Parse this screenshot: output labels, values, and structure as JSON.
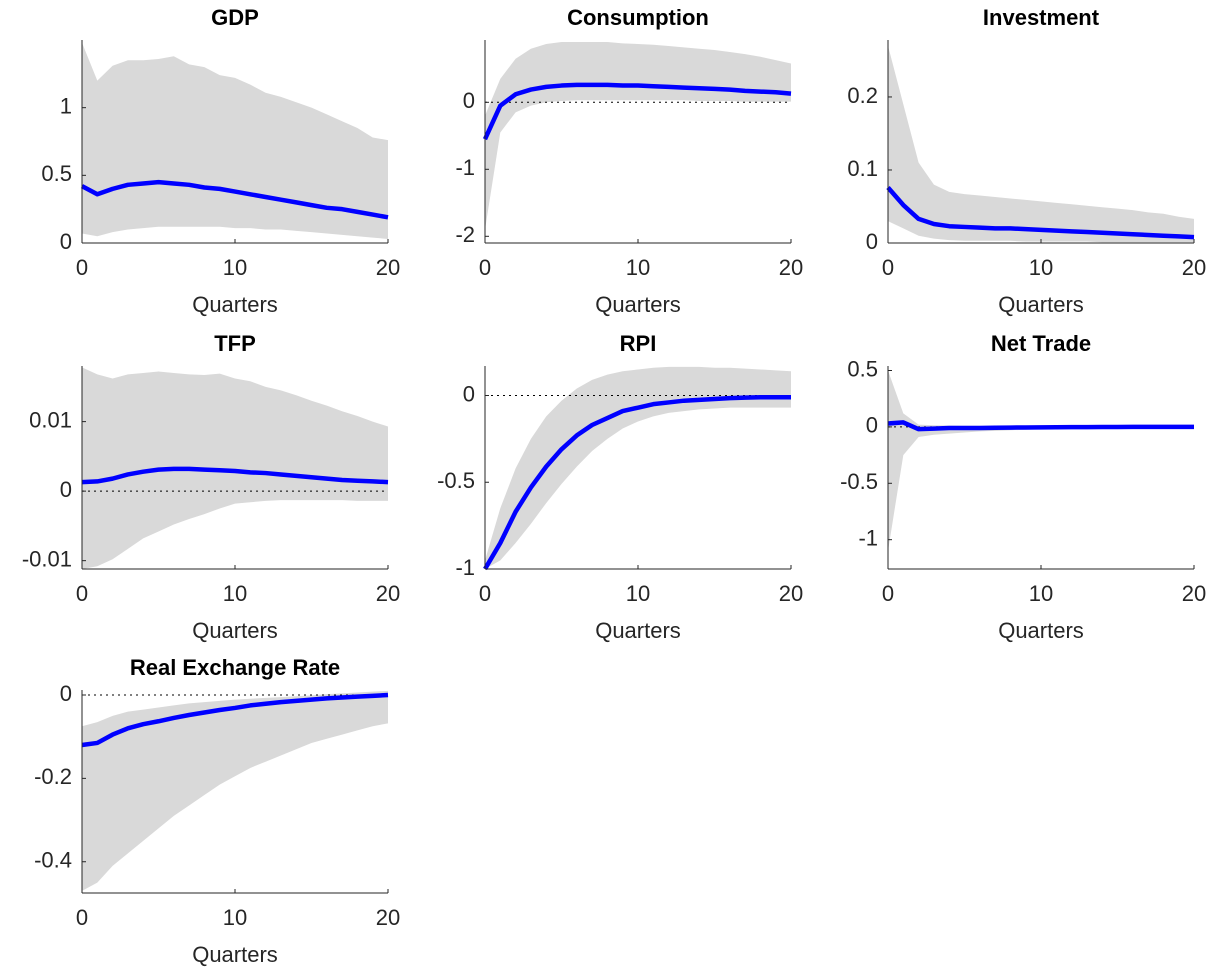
{
  "chart_data": [
    {
      "type": "line",
      "title": "GDP",
      "xlabel": "Quarters",
      "x": [
        0,
        1,
        2,
        3,
        4,
        5,
        6,
        7,
        8,
        9,
        10,
        11,
        12,
        13,
        14,
        15,
        16,
        17,
        18,
        19,
        20
      ],
      "xlim": [
        0,
        20
      ],
      "xticks": [
        0,
        10,
        20
      ],
      "ylim": [
        0,
        1.5
      ],
      "yticks": [
        0,
        0.5,
        1
      ],
      "color": "#0000ff",
      "band_color": "#d9d9d9",
      "zero_line": true,
      "values": [
        0.42,
        0.36,
        0.4,
        0.43,
        0.44,
        0.45,
        0.44,
        0.43,
        0.41,
        0.4,
        0.38,
        0.36,
        0.34,
        0.32,
        0.3,
        0.28,
        0.26,
        0.25,
        0.23,
        0.21,
        0.19
      ],
      "upper": [
        1.48,
        1.2,
        1.31,
        1.35,
        1.35,
        1.36,
        1.38,
        1.32,
        1.3,
        1.24,
        1.22,
        1.17,
        1.11,
        1.08,
        1.04,
        1.0,
        0.95,
        0.9,
        0.85,
        0.78,
        0.76
      ],
      "lower": [
        0.07,
        0.05,
        0.08,
        0.1,
        0.11,
        0.12,
        0.12,
        0.12,
        0.12,
        0.12,
        0.11,
        0.11,
        0.1,
        0.1,
        0.09,
        0.08,
        0.07,
        0.06,
        0.05,
        0.04,
        0.03
      ]
    },
    {
      "type": "line",
      "title": "Consumption",
      "xlabel": "Quarters",
      "x": [
        0,
        1,
        2,
        3,
        4,
        5,
        6,
        7,
        8,
        9,
        10,
        11,
        12,
        13,
        14,
        15,
        16,
        17,
        18,
        19,
        20
      ],
      "xlim": [
        0,
        20
      ],
      "xticks": [
        0,
        10,
        20
      ],
      "ylim": [
        -2.1,
        0.93
      ],
      "yticks": [
        -2,
        -1,
        0
      ],
      "color": "#0000ff",
      "band_color": "#d9d9d9",
      "zero_line": true,
      "values": [
        -0.55,
        -0.05,
        0.12,
        0.19,
        0.23,
        0.25,
        0.26,
        0.26,
        0.26,
        0.25,
        0.25,
        0.24,
        0.23,
        0.22,
        0.21,
        0.2,
        0.19,
        0.17,
        0.16,
        0.15,
        0.13
      ],
      "upper": [
        -0.2,
        0.35,
        0.65,
        0.8,
        0.87,
        0.9,
        0.9,
        0.9,
        0.9,
        0.88,
        0.87,
        0.86,
        0.84,
        0.82,
        0.8,
        0.78,
        0.75,
        0.72,
        0.68,
        0.63,
        0.58
      ],
      "lower": [
        -1.9,
        -0.45,
        -0.15,
        -0.05,
        0,
        0.02,
        0.03,
        0.03,
        0.03,
        0.03,
        0.03,
        0.03,
        0.03,
        0.03,
        0.02,
        0.02,
        0.02,
        0.01,
        0.01,
        0.01,
        0.01
      ]
    },
    {
      "type": "line",
      "title": "Investment",
      "xlabel": "Quarters",
      "x": [
        0,
        1,
        2,
        3,
        4,
        5,
        6,
        7,
        8,
        9,
        10,
        11,
        12,
        13,
        14,
        15,
        16,
        17,
        18,
        19,
        20
      ],
      "xlim": [
        0,
        20
      ],
      "xticks": [
        0,
        10,
        20
      ],
      "ylim": [
        0,
        0.278
      ],
      "yticks": [
        0,
        0.1,
        0.2
      ],
      "color": "#0000ff",
      "band_color": "#d9d9d9",
      "zero_line": true,
      "values": [
        0.076,
        0.052,
        0.033,
        0.026,
        0.023,
        0.022,
        0.021,
        0.02,
        0.02,
        0.019,
        0.018,
        0.017,
        0.016,
        0.015,
        0.014,
        0.013,
        0.012,
        0.011,
        0.01,
        0.009,
        0.008
      ],
      "upper": [
        0.27,
        0.19,
        0.11,
        0.08,
        0.07,
        0.067,
        0.065,
        0.063,
        0.061,
        0.059,
        0.057,
        0.055,
        0.053,
        0.051,
        0.049,
        0.047,
        0.045,
        0.042,
        0.04,
        0.036,
        0.033
      ],
      "lower": [
        0.03,
        0.02,
        0.01,
        0.006,
        0.004,
        0.003,
        0.003,
        0.003,
        0.003,
        0.002,
        0.002,
        0.002,
        0.002,
        0.002,
        0.001,
        0.001,
        0.001,
        0.001,
        0.001,
        0.001,
        0.001
      ]
    },
    {
      "type": "line",
      "title": "TFP",
      "xlabel": "Quarters",
      "x": [
        0,
        1,
        2,
        3,
        4,
        5,
        6,
        7,
        8,
        9,
        10,
        11,
        12,
        13,
        14,
        15,
        16,
        17,
        18,
        19,
        20
      ],
      "xlim": [
        0,
        20
      ],
      "xticks": [
        0,
        10,
        20
      ],
      "ylim": [
        -0.0112,
        0.018
      ],
      "yticks": [
        {
          "value": -0.01,
          "label": "-0.01"
        },
        0,
        0.01
      ],
      "color": "#0000ff",
      "band_color": "#d9d9d9",
      "zero_line": true,
      "values": [
        0.0013,
        0.0014,
        0.0018,
        0.0024,
        0.0028,
        0.0031,
        0.0032,
        0.0032,
        0.0031,
        0.003,
        0.0029,
        0.0027,
        0.0026,
        0.0024,
        0.0022,
        0.002,
        0.0018,
        0.0016,
        0.0015,
        0.0014,
        0.0013
      ],
      "upper": [
        0.0178,
        0.0168,
        0.0162,
        0.0168,
        0.017,
        0.0172,
        0.017,
        0.0168,
        0.0167,
        0.0169,
        0.0162,
        0.0158,
        0.015,
        0.0145,
        0.0138,
        0.013,
        0.0123,
        0.0115,
        0.0108,
        0.01,
        0.0093
      ],
      "lower": [
        -0.0112,
        -0.0108,
        -0.0098,
        -0.0083,
        -0.0068,
        -0.0058,
        -0.0048,
        -0.004,
        -0.0033,
        -0.0025,
        -0.0018,
        -0.0016,
        -0.0014,
        -0.0013,
        -0.0013,
        -0.0013,
        -0.0013,
        -0.0013,
        -0.0014,
        -0.0014,
        -0.0014
      ]
    },
    {
      "type": "line",
      "title": "RPI",
      "xlabel": "Quarters",
      "x": [
        0,
        1,
        2,
        3,
        4,
        5,
        6,
        7,
        8,
        9,
        10,
        11,
        12,
        13,
        14,
        15,
        16,
        17,
        18,
        19,
        20
      ],
      "xlim": [
        0,
        20
      ],
      "xticks": [
        0,
        10,
        20
      ],
      "ylim": [
        -1,
        0.17
      ],
      "yticks": [
        -1,
        -0.5,
        0
      ],
      "color": "#0000ff",
      "band_color": "#d9d9d9",
      "zero_line": true,
      "values": [
        -1,
        -0.85,
        -0.67,
        -0.53,
        -0.41,
        -0.31,
        -0.23,
        -0.17,
        -0.13,
        -0.09,
        -0.07,
        -0.05,
        -0.04,
        -0.03,
        -0.025,
        -0.02,
        -0.015,
        -0.012,
        -0.01,
        -0.01,
        -0.01
      ],
      "upper": [
        -0.95,
        -0.65,
        -0.42,
        -0.25,
        -0.12,
        -0.03,
        0.04,
        0.09,
        0.12,
        0.14,
        0.15,
        0.16,
        0.165,
        0.165,
        0.165,
        0.16,
        0.16,
        0.155,
        0.15,
        0.145,
        0.14
      ],
      "lower": [
        -1,
        -0.95,
        -0.85,
        -0.74,
        -0.62,
        -0.51,
        -0.41,
        -0.32,
        -0.25,
        -0.19,
        -0.15,
        -0.12,
        -0.1,
        -0.09,
        -0.08,
        -0.075,
        -0.07,
        -0.07,
        -0.07,
        -0.07,
        -0.07
      ]
    },
    {
      "type": "line",
      "title": "Net Trade",
      "xlabel": "Quarters",
      "x": [
        0,
        1,
        2,
        3,
        4,
        5,
        6,
        7,
        8,
        9,
        10,
        11,
        12,
        13,
        14,
        15,
        16,
        17,
        18,
        19,
        20
      ],
      "xlim": [
        0,
        20
      ],
      "xticks": [
        0,
        10,
        20
      ],
      "ylim": [
        -1.26,
        0.54
      ],
      "yticks": [
        -1,
        -0.5,
        0,
        0.5
      ],
      "color": "#0000ff",
      "band_color": "#d9d9d9",
      "zero_line": true,
      "values": [
        0.03,
        0.04,
        -0.02,
        -0.015,
        -0.01,
        -0.01,
        -0.01,
        -0.008,
        -0.006,
        -0.005,
        -0.004,
        -0.003,
        -0.002,
        -0.002,
        -0.001,
        -0.001,
        0,
        0,
        0,
        0,
        0
      ],
      "upper": [
        0.5,
        0.12,
        0.02,
        0.015,
        0.012,
        0.01,
        0.01,
        0.01,
        0.01,
        0.01,
        0.01,
        0.01,
        0.01,
        0.01,
        0.01,
        0.01,
        0.01,
        0.01,
        0.01,
        0.01,
        0.01
      ],
      "lower": [
        -1.1,
        -0.25,
        -0.09,
        -0.07,
        -0.06,
        -0.05,
        -0.04,
        -0.035,
        -0.03,
        -0.025,
        -0.02,
        -0.018,
        -0.015,
        -0.012,
        -0.01,
        -0.01,
        -0.01,
        -0.01,
        -0.01,
        -0.01,
        -0.01
      ]
    },
    {
      "type": "line",
      "title": "Real Exchange Rate",
      "xlabel": "Quarters",
      "x": [
        0,
        1,
        2,
        3,
        4,
        5,
        6,
        7,
        8,
        9,
        10,
        11,
        12,
        13,
        14,
        15,
        16,
        17,
        18,
        19,
        20
      ],
      "xlim": [
        0,
        20
      ],
      "xticks": [
        0,
        10,
        20
      ],
      "ylim": [
        -0.475,
        0.012
      ],
      "yticks": [
        -0.4,
        -0.2,
        0
      ],
      "color": "#0000ff",
      "band_color": "#d9d9d9",
      "zero_line": true,
      "values": [
        -0.12,
        -0.115,
        -0.095,
        -0.08,
        -0.07,
        -0.063,
        -0.055,
        -0.048,
        -0.042,
        -0.036,
        -0.031,
        -0.025,
        -0.021,
        -0.017,
        -0.014,
        -0.011,
        -0.008,
        -0.006,
        -0.004,
        -0.002,
        0
      ],
      "upper": [
        -0.075,
        -0.065,
        -0.05,
        -0.04,
        -0.035,
        -0.03,
        -0.025,
        -0.02,
        -0.017,
        -0.014,
        -0.011,
        -0.009,
        -0.007,
        -0.005,
        -0.003,
        -0.001,
        0.002,
        0.004,
        0.006,
        0.008,
        0.01
      ],
      "lower": [
        -0.47,
        -0.45,
        -0.41,
        -0.38,
        -0.35,
        -0.32,
        -0.29,
        -0.265,
        -0.24,
        -0.215,
        -0.195,
        -0.175,
        -0.16,
        -0.145,
        -0.13,
        -0.115,
        -0.105,
        -0.095,
        -0.085,
        -0.075,
        -0.068
      ]
    }
  ]
}
